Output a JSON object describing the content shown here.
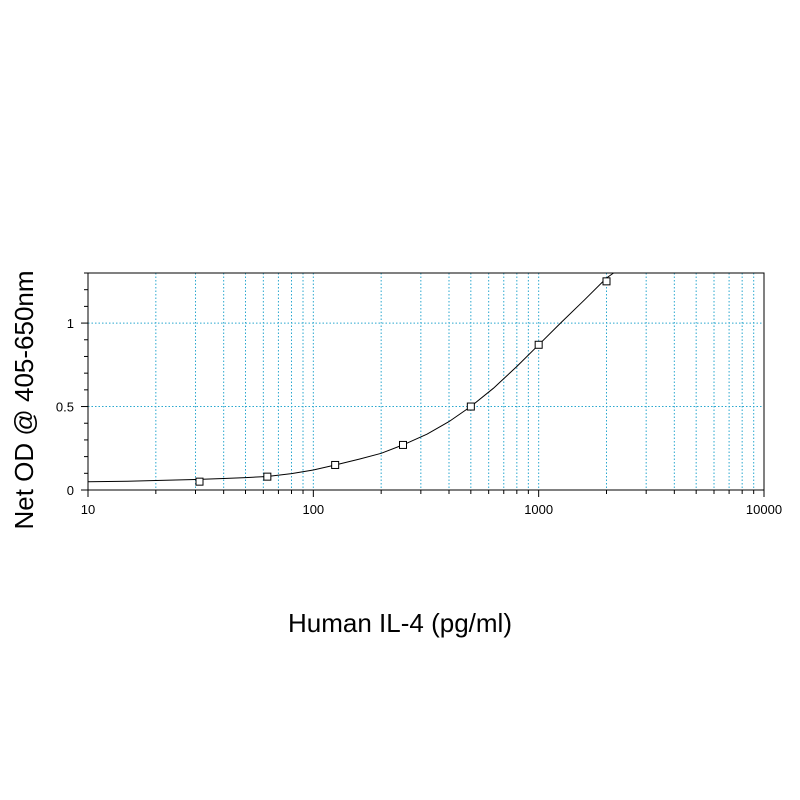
{
  "chart_data": {
    "type": "scatter",
    "xlabel": "Human IL-4 (pg/ml)",
    "ylabel": "Net OD @ 405-650nm",
    "x_scale": "log",
    "xlim": [
      10,
      10000
    ],
    "ylim": [
      0,
      1.3
    ],
    "x_ticks": [
      10,
      100,
      1000,
      10000
    ],
    "x_tick_labels": [
      "10",
      "100",
      "1000",
      "10000"
    ],
    "y_ticks": [
      0,
      0.5,
      1
    ],
    "y_tick_labels": [
      "0",
      "0.5",
      "1"
    ],
    "grid": true,
    "colors": {
      "grid": "#2aa7cf",
      "line": "#000000",
      "markers": "#000000"
    },
    "series": [
      {
        "markers": "open-square",
        "points": [
          {
            "x": 31.25,
            "y": 0.05
          },
          {
            "x": 62.5,
            "y": 0.08
          },
          {
            "x": 125,
            "y": 0.15
          },
          {
            "x": 250,
            "y": 0.27
          },
          {
            "x": 500,
            "y": 0.5
          },
          {
            "x": 1000,
            "y": 0.87
          },
          {
            "x": 2000,
            "y": 1.25
          }
        ]
      }
    ],
    "fit_curve": {
      "x": [
        10,
        15,
        20,
        30,
        40,
        50,
        62.5,
        80,
        100,
        125,
        160,
        200,
        250,
        320,
        400,
        500,
        630,
        800,
        1000,
        1250,
        1600,
        2000,
        2150
      ],
      "y": [
        0.05,
        0.053,
        0.057,
        0.063,
        0.069,
        0.074,
        0.081,
        0.098,
        0.12,
        0.15,
        0.185,
        0.22,
        0.27,
        0.335,
        0.41,
        0.5,
        0.61,
        0.74,
        0.87,
        1.0,
        1.14,
        1.27,
        1.3
      ]
    }
  }
}
